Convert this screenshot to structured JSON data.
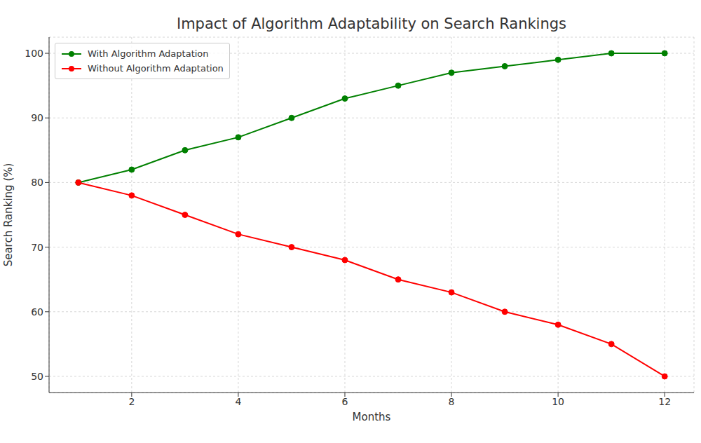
{
  "chart_data": {
    "type": "line",
    "title": "Impact of Algorithm Adaptability on Search Rankings",
    "x_label": "Months",
    "y_label": "Search Ranking (%)",
    "x": [
      1,
      2,
      3,
      4,
      5,
      6,
      7,
      8,
      9,
      10,
      11,
      12
    ],
    "series": [
      {
        "name": "With Algorithm Adaptation",
        "color": "#008000",
        "marker": "o",
        "line_style": "solid",
        "values": [
          80,
          82,
          85,
          87,
          90,
          93,
          95,
          97,
          98,
          99,
          100,
          100
        ]
      },
      {
        "name": "Without Algorithm Adaptation",
        "color": "#ff0000",
        "marker": "o",
        "line_style": "solid",
        "values": [
          80,
          78,
          75,
          72,
          70,
          68,
          65,
          63,
          60,
          58,
          55,
          50
        ]
      }
    ],
    "xlim": [
      0.45,
      12.55
    ],
    "ylim": [
      47.5,
      102.5
    ],
    "xticks": [
      2,
      4,
      6,
      8,
      10,
      12
    ],
    "yticks": [
      50,
      60,
      70,
      80,
      90,
      100
    ],
    "grid": true,
    "legend": "upper left"
  }
}
